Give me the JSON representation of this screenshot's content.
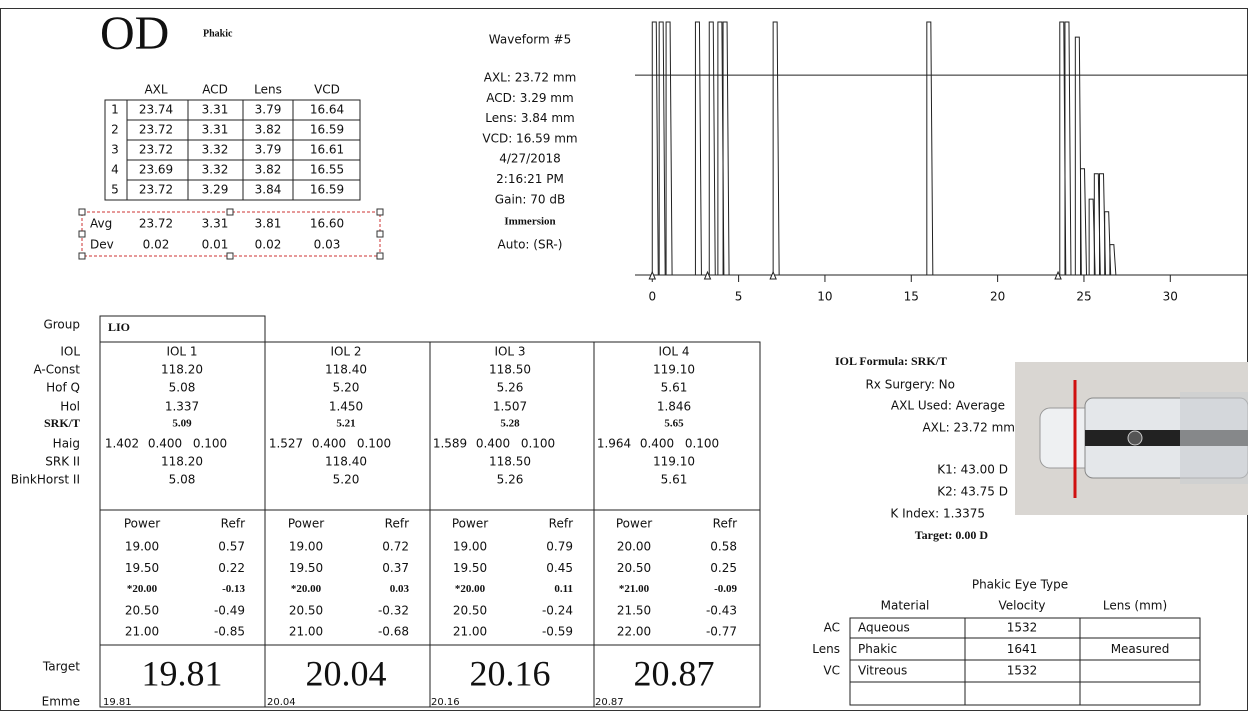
{
  "header": {
    "eye": "OD",
    "status": "Phakic"
  },
  "measurements": {
    "columns": [
      "AXL",
      "ACD",
      "Lens",
      "VCD"
    ],
    "rows": [
      [
        "1",
        "23.74",
        "3.31",
        "3.79",
        "16.64"
      ],
      [
        "2",
        "23.72",
        "3.31",
        "3.82",
        "16.59"
      ],
      [
        "3",
        "23.72",
        "3.32",
        "3.79",
        "16.61"
      ],
      [
        "4",
        "23.69",
        "3.32",
        "3.82",
        "16.55"
      ],
      [
        "5",
        "23.72",
        "3.29",
        "3.84",
        "16.59"
      ]
    ],
    "summary": [
      [
        "Avg",
        "23.72",
        "3.31",
        "3.81",
        "16.60"
      ],
      [
        "Dev",
        "0.02",
        "0.01",
        "0.02",
        "0.03"
      ]
    ]
  },
  "waveform_info": {
    "title": "Waveform #5",
    "lines": [
      "AXL: 23.72 mm",
      "ACD: 3.29 mm",
      "Lens: 3.84 mm",
      "VCD: 16.59 mm",
      "4/27/2018",
      "2:16:21 PM",
      "Gain: 70 dB"
    ],
    "mode": "Immersion",
    "auto": "Auto: (SR-)"
  },
  "waveform": {
    "xlim": [
      -1,
      34.5
    ],
    "ylim": [
      0,
      100
    ],
    "xticks": [
      0,
      5,
      10,
      15,
      20,
      25,
      30
    ],
    "threshold": 79,
    "peaks": [
      {
        "x": 0,
        "height": 100
      },
      {
        "x": 0.4,
        "height": 100
      },
      {
        "x": 0.8,
        "height": 100
      },
      {
        "x": 2.5,
        "height": 100
      },
      {
        "x": 3.3,
        "height": 100
      },
      {
        "x": 3.8,
        "height": 100
      },
      {
        "x": 4.1,
        "height": 100
      },
      {
        "x": 7,
        "height": 100
      },
      {
        "x": 15.9,
        "height": 100
      },
      {
        "x": 23.6,
        "height": 100
      },
      {
        "x": 23.9,
        "height": 100
      },
      {
        "x": 24.5,
        "height": 94
      },
      {
        "x": 24.8,
        "height": 42
      },
      {
        "x": 25.3,
        "height": 30
      },
      {
        "x": 25.6,
        "height": 40
      },
      {
        "x": 25.9,
        "height": 40
      },
      {
        "x": 26.2,
        "height": 25
      },
      {
        "x": 26.5,
        "height": 12
      }
    ],
    "markers": [
      0,
      3.2,
      7,
      23.5
    ]
  },
  "iol": {
    "row_labels": [
      "Group",
      "IOL",
      "A-Const",
      "Hof Q",
      "Hol",
      "SRK/T",
      "Haig",
      "SRK II",
      "BinkHorst II"
    ],
    "group": "LIO",
    "power_headers": [
      "Power",
      "Refr"
    ],
    "emphasized_row": 2,
    "target_label": "Target",
    "emme_label": "Emme",
    "columns": [
      {
        "iol": "IOL 1",
        "a_const": "118.20",
        "hof_q": "5.08",
        "hol": "1.337",
        "srkt": "5.09",
        "haig": [
          "1.402",
          "0.400",
          "0.100"
        ],
        "srk2": "118.20",
        "binkhorst": "5.08",
        "rows": [
          [
            "19.00",
            "0.57"
          ],
          [
            "19.50",
            "0.22"
          ],
          [
            "*20.00",
            "-0.13"
          ],
          [
            "20.50",
            "-0.49"
          ],
          [
            "21.00",
            "-0.85"
          ]
        ],
        "target": "19.81",
        "emme": "19.81"
      },
      {
        "iol": "IOL 2",
        "a_const": "118.40",
        "hof_q": "5.20",
        "hol": "1.450",
        "srkt": "5.21",
        "haig": [
          "1.527",
          "0.400",
          "0.100"
        ],
        "srk2": "118.40",
        "binkhorst": "5.20",
        "rows": [
          [
            "19.00",
            "0.72"
          ],
          [
            "19.50",
            "0.37"
          ],
          [
            "*20.00",
            "0.03"
          ],
          [
            "20.50",
            "-0.32"
          ],
          [
            "21.00",
            "-0.68"
          ]
        ],
        "target": "20.04",
        "emme": "20.04"
      },
      {
        "iol": "IOL 3",
        "a_const": "118.50",
        "hof_q": "5.26",
        "hol": "1.507",
        "srkt": "5.28",
        "haig": [
          "1.589",
          "0.400",
          "0.100"
        ],
        "srk2": "118.50",
        "binkhorst": "5.26",
        "rows": [
          [
            "19.00",
            "0.79"
          ],
          [
            "19.50",
            "0.45"
          ],
          [
            "*20.00",
            "0.11"
          ],
          [
            "20.50",
            "-0.24"
          ],
          [
            "21.00",
            "-0.59"
          ]
        ],
        "target": "20.16",
        "emme": "20.16"
      },
      {
        "iol": "IOL 4",
        "a_const": "119.10",
        "hof_q": "5.61",
        "hol": "1.846",
        "srkt": "5.65",
        "haig": [
          "1.964",
          "0.400",
          "0.100"
        ],
        "srk2": "119.10",
        "binkhorst": "5.61",
        "rows": [
          [
            "20.00",
            "0.58"
          ],
          [
            "20.50",
            "0.25"
          ],
          [
            "*21.00",
            "-0.09"
          ],
          [
            "21.50",
            "-0.43"
          ],
          [
            "22.00",
            "-0.77"
          ]
        ],
        "target": "20.87",
        "emme": "20.87"
      }
    ]
  },
  "formula": {
    "title": "IOL Formula: SRK/T",
    "lines": [
      "Rx Surgery: No",
      "AXL Used: Average",
      "AXL: 23.72 mm",
      "K1: 43.00 D",
      "K2: 43.75 D",
      "K Index: 1.3375"
    ],
    "target": "Target: 0.00 D"
  },
  "eye_type": {
    "title": "Phakic Eye Type",
    "headers": [
      "Material",
      "Velocity",
      "Lens (mm)"
    ],
    "rows": [
      [
        "AC",
        "Aqueous",
        "1532"
      ],
      [
        "Lens",
        "Phakic",
        "1641",
        "Measured"
      ],
      [
        "VC",
        "Vitreous",
        "1532"
      ]
    ]
  }
}
